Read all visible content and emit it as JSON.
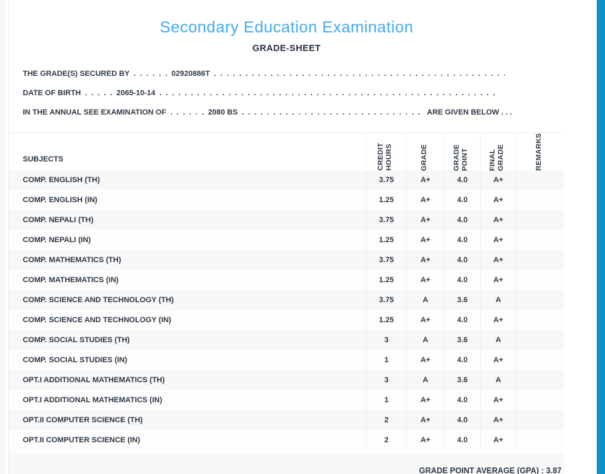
{
  "page": {
    "title": "Secondary Education Examination",
    "subtitle": "GRADE-SHEET",
    "accent_color": "#3fa9f5",
    "scrollbar_color": "#1092c6"
  },
  "info_lines": {
    "secured_by": {
      "prefix": "THE GRADE(S) SECURED BY",
      "pre_dots": ". . . . . .",
      "value": "02920886T",
      "fill_dots": ". . . . . . . . . . . . . . . . . . . . . . . . . . . . . . . . . . . . . . . . . . . . . . . . . . . . . . . . . . . . . . . . . . . . . . . . . . . ."
    },
    "date_of_birth": {
      "prefix": "DATE OF BIRTH",
      "pre_dots": ". . . . .",
      "value": "2065-10-14",
      "fill_dots": ". . . . . . . . . . . . . . . . . . . . . . . . . . . . . . . . . . . . . . . . . . . . . . . . . . . . . . . . . . . . . . . . . . . . . . . . . . . ."
    },
    "exam_year": {
      "prefix": "IN THE ANNUAL SEE EXAMINATION OF",
      "pre_dots": ". . . . . .",
      "value": "2080 BS",
      "fill_dots": ". . . . . . . . . . . . . . . . . . . . . . . . . . . . . . . . . . . . . . . . . . . . . . . . . . . . . . . . . . . .",
      "suffix": "ARE GIVEN BELOW . . ."
    }
  },
  "table": {
    "subjects_header": "SUBJECTS",
    "columns": [
      "CREDIT\nHOURS",
      "GRADE",
      "GRADE\nPOINT",
      "FINAL\nGRADE",
      "REMARKS"
    ],
    "rows": [
      {
        "subject": "COMP. ENGLISH (TH)",
        "credit_hours": "3.75",
        "grade": "A+",
        "grade_point": "4.0",
        "final_grade": "A+",
        "remarks": ""
      },
      {
        "subject": "COMP. ENGLISH (IN)",
        "credit_hours": "1.25",
        "grade": "A+",
        "grade_point": "4.0",
        "final_grade": "A+",
        "remarks": ""
      },
      {
        "subject": "COMP. NEPALI (TH)",
        "credit_hours": "3.75",
        "grade": "A+",
        "grade_point": "4.0",
        "final_grade": "A+",
        "remarks": ""
      },
      {
        "subject": "COMP. NEPALI (IN)",
        "credit_hours": "1.25",
        "grade": "A+",
        "grade_point": "4.0",
        "final_grade": "A+",
        "remarks": ""
      },
      {
        "subject": "COMP. MATHEMATICS (TH)",
        "credit_hours": "3.75",
        "grade": "A+",
        "grade_point": "4.0",
        "final_grade": "A+",
        "remarks": ""
      },
      {
        "subject": "COMP. MATHEMATICS (IN)",
        "credit_hours": "1.25",
        "grade": "A+",
        "grade_point": "4.0",
        "final_grade": "A+",
        "remarks": ""
      },
      {
        "subject": "COMP. SCIENCE AND TECHNOLOGY (TH)",
        "credit_hours": "3.75",
        "grade": "A",
        "grade_point": "3.6",
        "final_grade": "A",
        "remarks": ""
      },
      {
        "subject": "COMP. SCIENCE AND TECHNOLOGY (IN)",
        "credit_hours": "1.25",
        "grade": "A+",
        "grade_point": "4.0",
        "final_grade": "A+",
        "remarks": ""
      },
      {
        "subject": "COMP. SOCIAL STUDIES (TH)",
        "credit_hours": "3",
        "grade": "A",
        "grade_point": "3.6",
        "final_grade": "A",
        "remarks": ""
      },
      {
        "subject": "COMP. SOCIAL STUDIES (IN)",
        "credit_hours": "1",
        "grade": "A+",
        "grade_point": "4.0",
        "final_grade": "A+",
        "remarks": ""
      },
      {
        "subject": "OPT.I ADDITIONAL MATHEMATICS (TH)",
        "credit_hours": "3",
        "grade": "A",
        "grade_point": "3.6",
        "final_grade": "A",
        "remarks": ""
      },
      {
        "subject": "OPT.I ADDITIONAL MATHEMATICS (IN)",
        "credit_hours": "1",
        "grade": "A+",
        "grade_point": "4.0",
        "final_grade": "A+",
        "remarks": ""
      },
      {
        "subject": "OPT.II COMPUTER SCIENCE (TH)",
        "credit_hours": "2",
        "grade": "A+",
        "grade_point": "4.0",
        "final_grade": "A+",
        "remarks": ""
      },
      {
        "subject": "OPT.II COMPUTER SCIENCE (IN)",
        "credit_hours": "2",
        "grade": "A+",
        "grade_point": "4.0",
        "final_grade": "A+",
        "remarks": ""
      }
    ],
    "footer": {
      "gpa_label": "GRADE POINT AVERAGE (GPA)",
      "separator": " : ",
      "gpa_value": "3.87"
    }
  }
}
